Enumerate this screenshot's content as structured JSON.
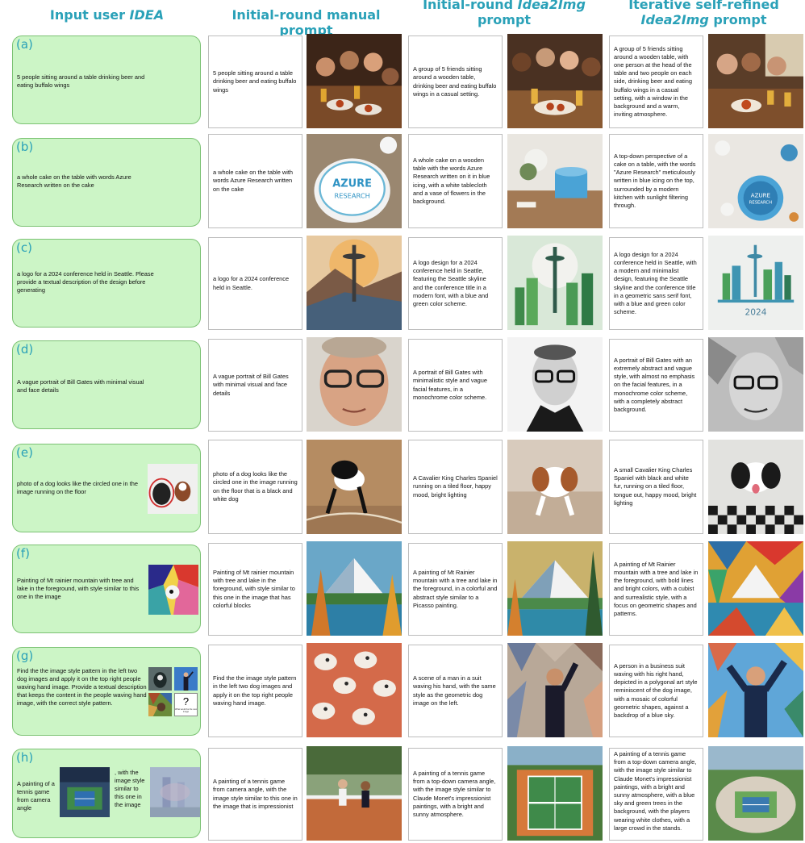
{
  "headers": {
    "col1": "Input user",
    "col1_em": "IDEA",
    "col2": "Initial-round manual prompt",
    "col3_line1_a": "Initial-round",
    "col3_line1_em": "Idea2Img",
    "col3_line2": "prompt",
    "col4_line1": "Iterative self-refined",
    "col4_line2_em": "Idea2Img",
    "col4_line2_b": "prompt"
  },
  "rows": [
    {
      "label": "(a)",
      "idea": "5 people sitting around a table drinking beer and eating buffalo wings",
      "manual": "5 people sitting around a table drinking beer and eating buffalo wings",
      "initial": "A group of 5 friends sitting around a wooden table, drinking beer and eating buffalo wings in a casual setting.",
      "refined": "A group of 5 friends sitting around a wooden table, with one person at the head of the table and two people on each side, drinking beer and eating buffalo wings in a casual setting, with a window in the background and a warm, inviting atmosphere."
    },
    {
      "label": "(b)",
      "idea": "a whole cake on the table with words Azure Research written on the cake",
      "manual": "a whole cake on the table with words Azure Research written on the cake",
      "initial": "A whole cake on a wooden table with the words Azure Research written on it in blue icing, with a white tablecloth and a vase of flowers in the background.",
      "refined": "A top-down perspective of a cake on a table, with the words \"Azure Research\" meticulously written in blue icing on the top, surrounded by a modern kitchen with sunlight filtering through.",
      "cake_text1": "AZURE",
      "cake_text2": "RESEARCH",
      "cake_small1": "AZURE",
      "cake_small2": "RESEARCH"
    },
    {
      "label": "(c)",
      "idea": "a logo for a 2024 conference held in Seattle. Please provide a textual description of the design before generating",
      "manual": "a logo for a 2024 conference held in Seattle.",
      "initial": "A logo design for a 2024 conference held in Seattle, featuring the Seattle skyline and the conference title in a modern font, with a blue and green color scheme.",
      "refined": "A logo design for a 2024 conference held in Seattle, with a modern and minimalist design, featuring the Seattle skyline and the conference title in a geometric sans serif font, with a blue and green color scheme.",
      "logo_year": "2024"
    },
    {
      "label": "(d)",
      "idea": "A vague portrait of Bill Gates with minimal visual and face details",
      "manual": "A vague portrait of Bill Gates with minimal visual and face details",
      "initial": "A portrait of Bill Gates with minimalistic style and vague facial features, in a monochrome color scheme.",
      "refined": "A portrait of Bill Gates with an extremely abstract and vague style, with almost no emphasis on the facial features, in a monochrome color scheme, with a completely abstract background."
    },
    {
      "label": "(e)",
      "idea": "photo of a dog looks like the circled one in the image running on the floor",
      "manual": "photo of a dog looks like the circled one in the image running on the floor that is a black and white dog",
      "initial": "A Cavalier King Charles Spaniel running on a tiled floor, happy mood, bright lighting",
      "refined": "A small Cavalier King Charles Spaniel with black and white fur, running on a tiled floor, tongue out, happy mood, bright lighting"
    },
    {
      "label": "(f)",
      "idea": "Painting of Mt rainier mountain with tree and lake in the foreground, with style similar to this one in the image",
      "manual": "Painting of Mt rainier mountain with tree and lake in the foreground, with style similar to this one in the image that has colorful blocks",
      "initial": "A painting of Mt Rainier mountain with a tree and lake in the foreground, in a colorful and abstract style similar to a Picasso painting.",
      "refined": "A painting of Mt Rainier mountain with a tree and lake in the foreground, with bold lines and bright colors, with a cubist and surrealistic style, with a focus on geometric shapes and patterns."
    },
    {
      "label": "(g)",
      "idea": "Find the the image style pattern in the left two dog images and apply it on the top right people waving hand image. Provide a textual description that keeps the content in the people waving hand image, with the correct style pattern.",
      "manual": "Find the the image style pattern in the left two dog images and apply it on the top right people waving hand image.",
      "initial": "A scene of a man in a suit waving his hand, with the same style as the geometric dog image on the left.",
      "refined": "A person in a business suit waving with his right hand, depicted in a polygonal art style reminiscent of the dog image, with a mosaic of colorful geometric shapes, against a backdrop of a blue sky.",
      "qmark": "?",
      "thumb_caption": "What would be the new image"
    },
    {
      "label": "(h)",
      "idea_a": "A painting of a tennis game from camera angle",
      "idea_b": ", with the image style similar to this one in the image",
      "manual": "A painting of a tennis game from camera angle, with the image style similar to this one in the image that is impressionist",
      "initial": "A painting of a tennis game from a top-down camera angle, with the image style similar to Claude Monet's impressionist paintings, with a bright and sunny atmosphere.",
      "refined": "A painting of a tennis game from a top-down camera angle, with the image style similar to Claude Monet's impressionist paintings, with a bright and sunny atmosphere, with a blue sky and green trees in the background, with the players wearing white clothes, with a large crowd in the stands."
    }
  ]
}
